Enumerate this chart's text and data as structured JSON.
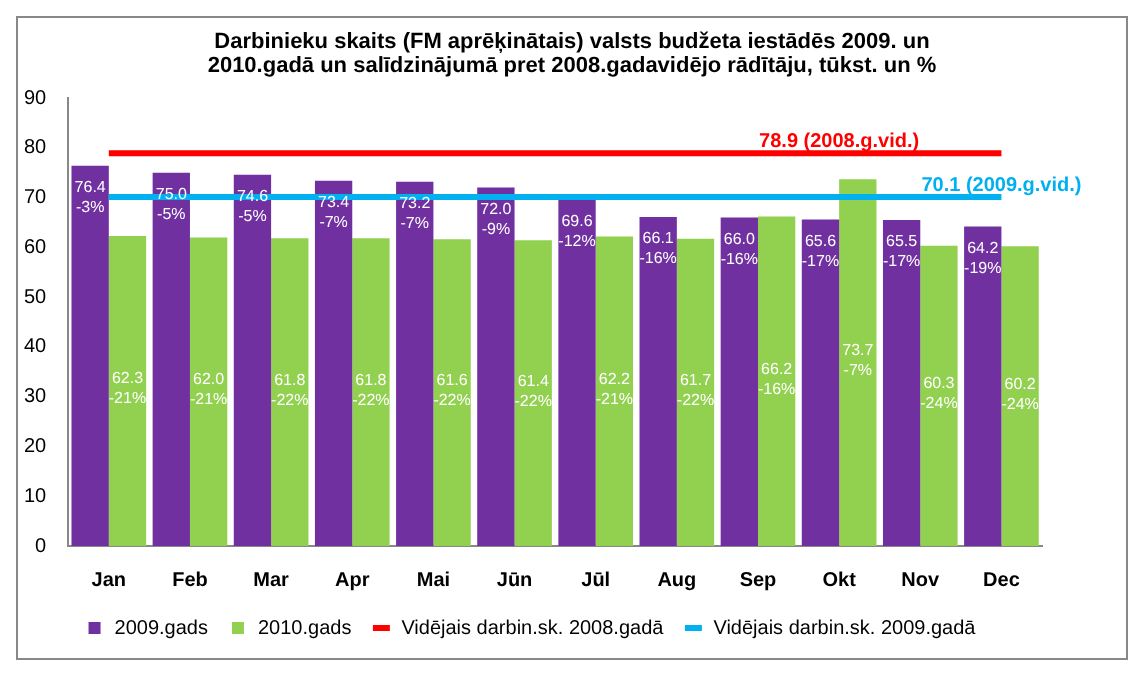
{
  "chart_data": {
    "type": "bar",
    "title": "Darbinieku skaits (FM aprēķinātais)  valsts budžeta iestādēs 2009. un 2010.gadā un salīdzinājumā  pret 2008.gadavidējo rādītāju, tūkst. un %",
    "categories": [
      "Jan",
      "Feb",
      "Mar",
      "Apr",
      "Mai",
      "Jūn",
      "Jūl",
      "Aug",
      "Sep",
      "Okt",
      "Nov",
      "Dec"
    ],
    "series": [
      {
        "name": "2009.gads",
        "color": "#7030a0",
        "values": [
          76.4,
          75.0,
          74.6,
          73.4,
          73.2,
          72.0,
          69.6,
          66.1,
          66.0,
          65.6,
          65.5,
          64.2
        ],
        "value_labels": [
          "76.4\n-3%",
          "75.0\n-5%",
          "74.6\n-5%",
          "73.4\n-7%",
          "73.2\n-7%",
          "72.0\n-9%",
          "69.6\n-12%",
          "66.1\n-16%",
          "66.0\n-16%",
          "65.6\n-17%",
          "65.5\n-17%",
          "64.2\n-19%"
        ]
      },
      {
        "name": "2010.gads",
        "color": "#92d050",
        "values": [
          62.3,
          62.0,
          61.8,
          61.8,
          61.6,
          61.4,
          62.2,
          61.7,
          66.2,
          73.7,
          60.3,
          60.2
        ],
        "value_labels": [
          "62.3\n-21%",
          "62.0\n-21%",
          "61.8\n-22%",
          "61.8\n-22%",
          "61.6\n-22%",
          "61.4\n-22%",
          "62.2\n-21%",
          "61.7\n-22%",
          "66.2\n-16%",
          "73.7\n-7%",
          "60.3\n-24%",
          "60.2\n-24%"
        ]
      },
      {
        "name": "Vidējais darbin.sk. 2008.gadā",
        "type": "line",
        "color": "#ff0000",
        "values": [
          78.9,
          78.9,
          78.9,
          78.9,
          78.9,
          78.9,
          78.9,
          78.9,
          78.9,
          78.9,
          78.9,
          78.9
        ]
      },
      {
        "name": "Vidējais darbin.sk. 2009.gadā",
        "type": "line",
        "color": "#00b0f0",
        "values": [
          70.1,
          70.1,
          70.1,
          70.1,
          70.1,
          70.1,
          70.1,
          70.1,
          70.1,
          70.1,
          70.1,
          70.1
        ]
      }
    ],
    "annotations": [
      {
        "text": "78.9 (2008.g.vid.)",
        "x": "Okt",
        "y": 78.9
      },
      {
        "text": "70.1 (2009.g.vid.)",
        "x": "Dec",
        "y": 70.1
      }
    ],
    "ylim": [
      0,
      90
    ],
    "yticks": [
      0,
      10,
      20,
      30,
      40,
      50,
      60,
      70,
      80,
      90
    ],
    "grid": false,
    "legend": "bottom",
    "marker": "none"
  }
}
